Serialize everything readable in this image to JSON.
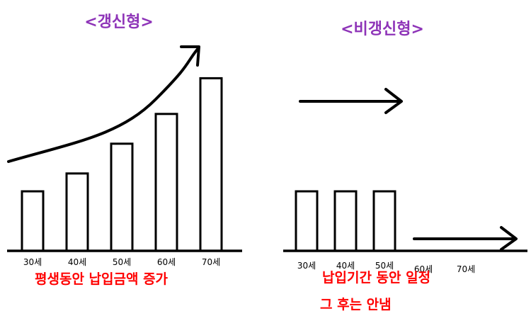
{
  "left_panel": {
    "title": "<갱신형>",
    "bars": [
      {
        "label": "30세",
        "value": 1.0
      },
      {
        "label": "40세",
        "value": 1.3
      },
      {
        "label": "50세",
        "value": 1.8
      },
      {
        "label": "60세",
        "value": 2.3
      },
      {
        "label": "70세",
        "value": 2.9
      }
    ],
    "caption": "평생동안 납입금액 증가"
  },
  "right_panel": {
    "title": "<비갱신형>",
    "bars": [
      {
        "label": "30세",
        "value": 1.0
      },
      {
        "label": "40세",
        "value": 1.0
      },
      {
        "label": "50세",
        "value": 1.0
      }
    ],
    "extra_ticks": [
      "60세",
      "70세"
    ],
    "caption_line1": "납입기간 동안 일정",
    "caption_line2": "그 후는 안냄"
  },
  "colors": {
    "title": "#8e34b8",
    "caption": "#ff0000",
    "ink": "#000000"
  }
}
